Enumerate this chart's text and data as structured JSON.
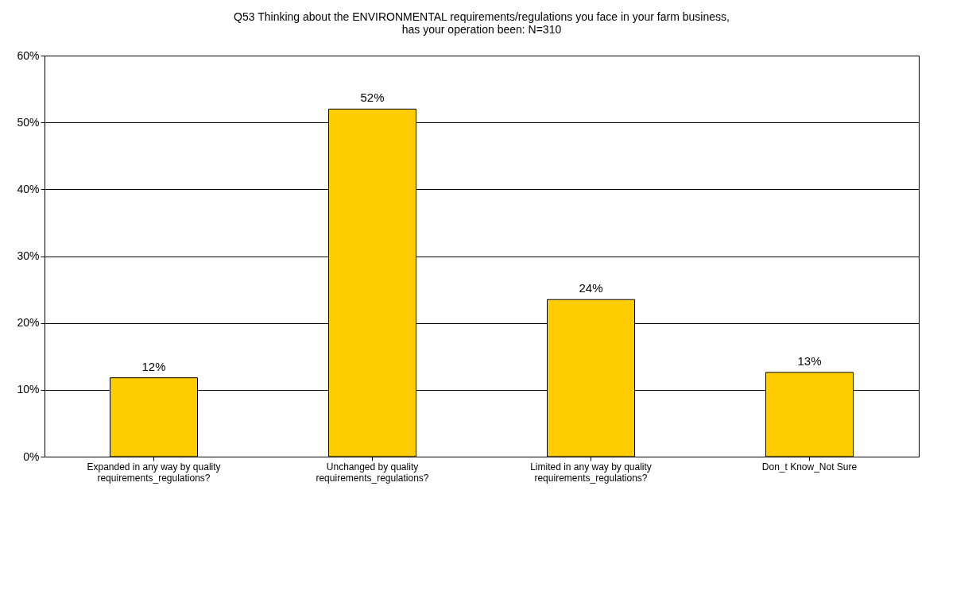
{
  "chart_data": {
    "type": "bar",
    "title": "Q53 Thinking about the ENVIRONMENTAL requirements/regulations you face in your farm business,\nhas your operation been: N=310",
    "categories": [
      "Expanded in any way by quality\nrequirements_regulations?",
      "Unchanged by quality\nrequirements_regulations?",
      "Limited in any way by quality\nrequirements_regulations?",
      "Don_t Know_Not Sure"
    ],
    "values": [
      11.8,
      52,
      23.5,
      12.6
    ],
    "value_labels": [
      "12%",
      "52%",
      "24%",
      "13%"
    ],
    "color": "#ffcc00",
    "ylim": [
      0,
      60
    ],
    "yticks": [
      {
        "value": 0,
        "label": "0%"
      },
      {
        "value": 10,
        "label": "10%"
      },
      {
        "value": 20,
        "label": "20%"
      },
      {
        "value": 30,
        "label": "30%"
      },
      {
        "value": 40,
        "label": "40%"
      },
      {
        "value": 50,
        "label": "50%"
      },
      {
        "value": 60,
        "label": "60%"
      }
    ],
    "grid": "y"
  }
}
